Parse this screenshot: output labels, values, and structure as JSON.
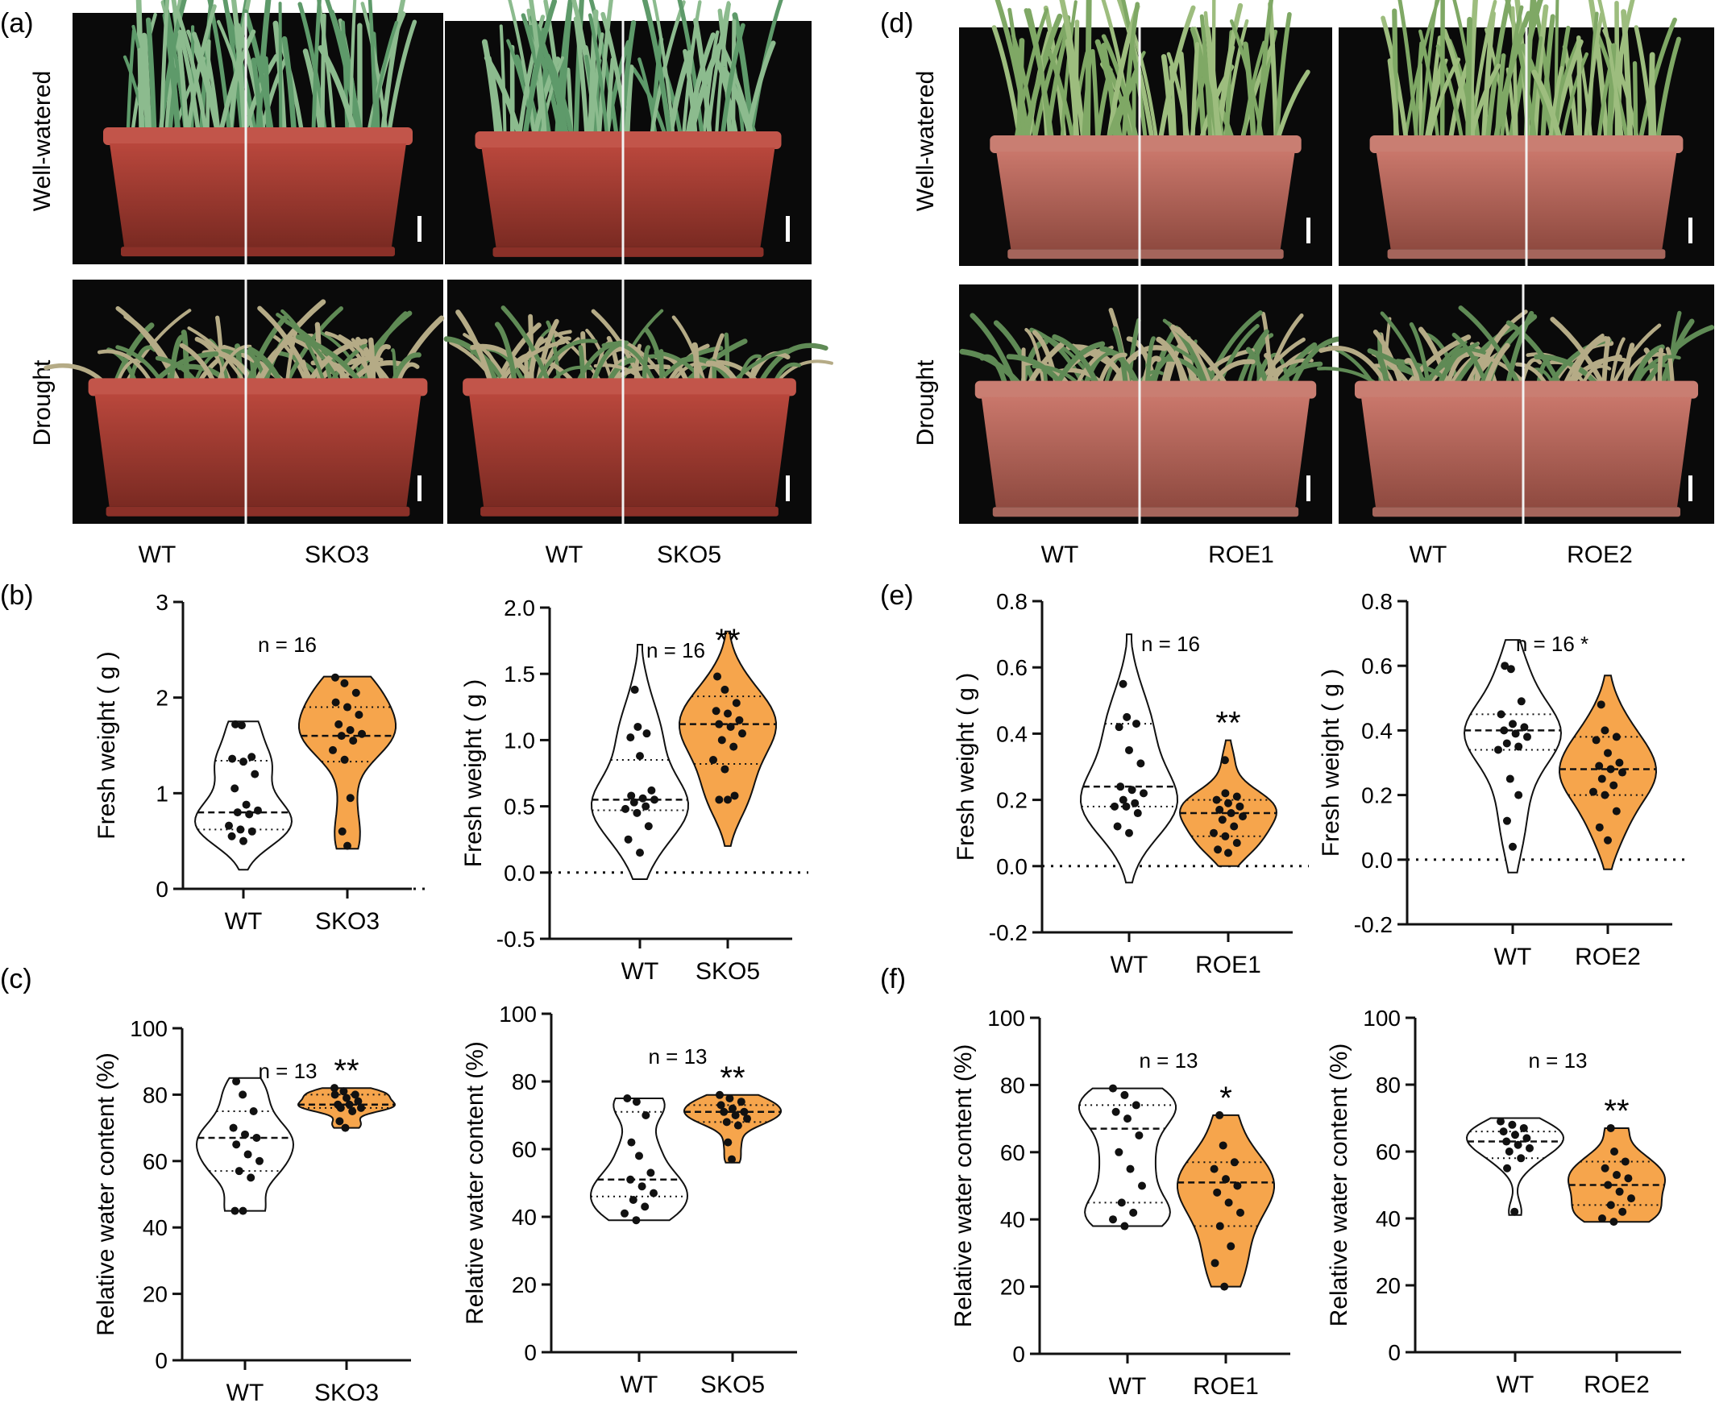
{
  "panels": {
    "a": "(a)",
    "b": "(b)",
    "c": "(c)",
    "d": "(d)",
    "e": "(e)",
    "f": "(f)"
  },
  "row_labels": {
    "well_watered": "Well-watered",
    "drought": "Drought"
  },
  "photo_genotypes": {
    "a1": [
      "WT",
      "SKO3"
    ],
    "a2": [
      "WT",
      "SKO5"
    ],
    "d1": [
      "WT",
      "ROE1"
    ],
    "d2": [
      "WT",
      "ROE2"
    ]
  },
  "colors": {
    "wt_fill": "#ffffff",
    "mutant_fill": "#f6a54c",
    "outline": "#111111"
  },
  "chart_data": [
    {
      "id": "b1",
      "type": "violin",
      "ylabel": "Fresh weight ( g )",
      "categories": [
        "WT",
        "SKO3"
      ],
      "ylim": [
        0,
        3
      ],
      "yticks": [
        "0",
        "1",
        "2",
        "3"
      ],
      "n_label": "n = 16",
      "significance": "",
      "series": [
        {
          "name": "WT",
          "range": [
            0.2,
            1.75
          ],
          "median": 0.8,
          "quartiles": [
            0.62,
            1.34
          ],
          "points": [
            1.72,
            1.71,
            1.38,
            1.36,
            1.33,
            1.2,
            1.05,
            0.88,
            0.82,
            0.8,
            0.78,
            0.66,
            0.62,
            0.6,
            0.55,
            0.5
          ]
        },
        {
          "name": "SKO3",
          "range": [
            0.42,
            2.22
          ],
          "median": 1.6,
          "quartiles": [
            1.33,
            1.9
          ],
          "points": [
            2.21,
            2.15,
            2.05,
            1.95,
            1.9,
            1.82,
            1.72,
            1.66,
            1.62,
            1.6,
            1.55,
            1.45,
            1.35,
            0.95,
            0.6,
            0.45
          ]
        }
      ]
    },
    {
      "id": "b2",
      "type": "violin",
      "ylabel": "Fresh weight ( g )",
      "categories": [
        "WT",
        "SKO5"
      ],
      "ylim": [
        -0.5,
        2.0
      ],
      "yticks": [
        "-0.5",
        "0.0",
        "0.5",
        "1.0",
        "1.5",
        "2.0"
      ],
      "n_label": "n = 16",
      "significance": "**",
      "series": [
        {
          "name": "WT",
          "range": [
            -0.05,
            1.72
          ],
          "median": 0.55,
          "quartiles": [
            0.47,
            0.85
          ],
          "points": [
            1.38,
            1.1,
            1.05,
            1.02,
            0.88,
            0.62,
            0.58,
            0.56,
            0.55,
            0.53,
            0.5,
            0.48,
            0.45,
            0.35,
            0.25,
            0.15
          ]
        },
        {
          "name": "SKO5",
          "range": [
            0.2,
            1.82
          ],
          "median": 1.12,
          "quartiles": [
            0.82,
            1.33
          ],
          "points": [
            1.48,
            1.38,
            1.28,
            1.22,
            1.2,
            1.15,
            1.12,
            1.1,
            1.05,
            1.0,
            0.95,
            0.85,
            0.78,
            0.58,
            0.55,
            0.55
          ]
        }
      ]
    },
    {
      "id": "c1",
      "type": "violin",
      "ylabel": "Relative water content (%)",
      "categories": [
        "WT",
        "SKO3"
      ],
      "ylim": [
        0,
        100
      ],
      "yticks": [
        "0",
        "20",
        "40",
        "60",
        "80",
        "100"
      ],
      "n_label": "n = 13",
      "significance": "**",
      "series": [
        {
          "name": "WT",
          "range": [
            45,
            85
          ],
          "median": 67,
          "quartiles": [
            57,
            75
          ],
          "points": [
            84,
            80,
            75,
            70,
            68,
            67,
            65,
            62,
            60,
            57,
            55,
            45,
            45
          ]
        },
        {
          "name": "SKO3",
          "range": [
            70,
            82
          ],
          "median": 77,
          "quartiles": [
            76,
            80
          ],
          "points": [
            82,
            81,
            80,
            80,
            79,
            78,
            77,
            77,
            76,
            76,
            75,
            72,
            70
          ]
        }
      ]
    },
    {
      "id": "c2",
      "type": "violin",
      "ylabel": "Relative water content (%)",
      "categories": [
        "WT",
        "SKO5"
      ],
      "ylim": [
        0,
        100
      ],
      "yticks": [
        "0",
        "20",
        "40",
        "60",
        "80",
        "100"
      ],
      "n_label": "n = 13",
      "significance": "**",
      "series": [
        {
          "name": "WT",
          "range": [
            39,
            75
          ],
          "median": 51,
          "quartiles": [
            46,
            71
          ],
          "points": [
            75,
            74,
            70,
            62,
            58,
            53,
            51,
            49,
            47,
            45,
            43,
            41,
            39
          ]
        },
        {
          "name": "SKO5",
          "range": [
            56,
            76
          ],
          "median": 71,
          "quartiles": [
            68,
            73
          ],
          "points": [
            76,
            75,
            74,
            73,
            72,
            71,
            71,
            70,
            69,
            68,
            67,
            62,
            57
          ]
        }
      ]
    },
    {
      "id": "e1",
      "type": "violin",
      "ylabel": "Fresh weight ( g )",
      "categories": [
        "WT",
        "ROE1"
      ],
      "ylim": [
        -0.2,
        0.8
      ],
      "yticks": [
        "-0.2",
        "0.0",
        "0.2",
        "0.4",
        "0.6",
        "0.8"
      ],
      "n_label": "n = 16",
      "significance": "**",
      "series": [
        {
          "name": "WT",
          "range": [
            -0.05,
            0.7
          ],
          "median": 0.24,
          "quartiles": [
            0.18,
            0.43
          ],
          "points": [
            0.55,
            0.45,
            0.43,
            0.42,
            0.35,
            0.31,
            0.24,
            0.23,
            0.22,
            0.2,
            0.19,
            0.18,
            0.18,
            0.16,
            0.12,
            0.1
          ]
        },
        {
          "name": "ROE1",
          "range": [
            0.0,
            0.38
          ],
          "median": 0.16,
          "quartiles": [
            0.09,
            0.2
          ],
          "points": [
            0.32,
            0.22,
            0.21,
            0.2,
            0.19,
            0.18,
            0.17,
            0.16,
            0.15,
            0.14,
            0.12,
            0.1,
            0.09,
            0.07,
            0.05,
            0.04
          ]
        }
      ]
    },
    {
      "id": "e2",
      "type": "violin",
      "ylabel": "Fresh weight ( g )",
      "categories": [
        "WT",
        "ROE2"
      ],
      "ylim": [
        -0.2,
        0.8
      ],
      "yticks": [
        "-0.2",
        "0.0",
        "0.2",
        "0.4",
        "0.6",
        "0.8"
      ],
      "n_label": "n = 16 *",
      "significance": "",
      "series": [
        {
          "name": "WT",
          "range": [
            -0.04,
            0.68
          ],
          "median": 0.4,
          "quartiles": [
            0.34,
            0.45
          ],
          "points": [
            0.6,
            0.59,
            0.49,
            0.45,
            0.42,
            0.41,
            0.4,
            0.39,
            0.38,
            0.36,
            0.35,
            0.34,
            0.25,
            0.2,
            0.12,
            0.04
          ]
        },
        {
          "name": "ROE2",
          "range": [
            -0.03,
            0.57
          ],
          "median": 0.28,
          "quartiles": [
            0.2,
            0.38
          ],
          "points": [
            0.48,
            0.4,
            0.38,
            0.37,
            0.33,
            0.3,
            0.29,
            0.28,
            0.27,
            0.25,
            0.23,
            0.21,
            0.2,
            0.15,
            0.1,
            0.06
          ]
        }
      ]
    },
    {
      "id": "f1",
      "type": "violin",
      "ylabel": "Relative water content (%)",
      "categories": [
        "WT",
        "ROE1"
      ],
      "ylim": [
        0,
        100
      ],
      "yticks": [
        "0",
        "20",
        "40",
        "60",
        "80",
        "100"
      ],
      "n_label": "n = 13",
      "significance": "*",
      "series": [
        {
          "name": "WT",
          "range": [
            38,
            79
          ],
          "median": 67,
          "quartiles": [
            45,
            74
          ],
          "points": [
            79,
            77,
            74,
            72,
            70,
            65,
            60,
            55,
            50,
            45,
            42,
            40,
            38
          ]
        },
        {
          "name": "ROE1",
          "range": [
            20,
            71
          ],
          "median": 51,
          "quartiles": [
            38,
            57
          ],
          "points": [
            71,
            62,
            57,
            55,
            52,
            50,
            48,
            45,
            42,
            38,
            32,
            27,
            20
          ]
        }
      ]
    },
    {
      "id": "f2",
      "type": "violin",
      "ylabel": "Relative water content (%)",
      "categories": [
        "WT",
        "ROE2"
      ],
      "ylim": [
        0,
        100
      ],
      "yticks": [
        "0",
        "20",
        "40",
        "60",
        "80",
        "100"
      ],
      "n_label": "n = 13",
      "significance": "**",
      "series": [
        {
          "name": "WT",
          "range": [
            41,
            70
          ],
          "median": 63,
          "quartiles": [
            58,
            66
          ],
          "points": [
            69,
            68,
            67,
            66,
            65,
            64,
            63,
            62,
            61,
            60,
            58,
            55,
            42
          ]
        },
        {
          "name": "ROE2",
          "range": [
            39,
            67
          ],
          "median": 50,
          "quartiles": [
            44,
            57
          ],
          "points": [
            67,
            60,
            57,
            55,
            53,
            52,
            50,
            48,
            46,
            44,
            42,
            40,
            39
          ]
        }
      ]
    }
  ]
}
